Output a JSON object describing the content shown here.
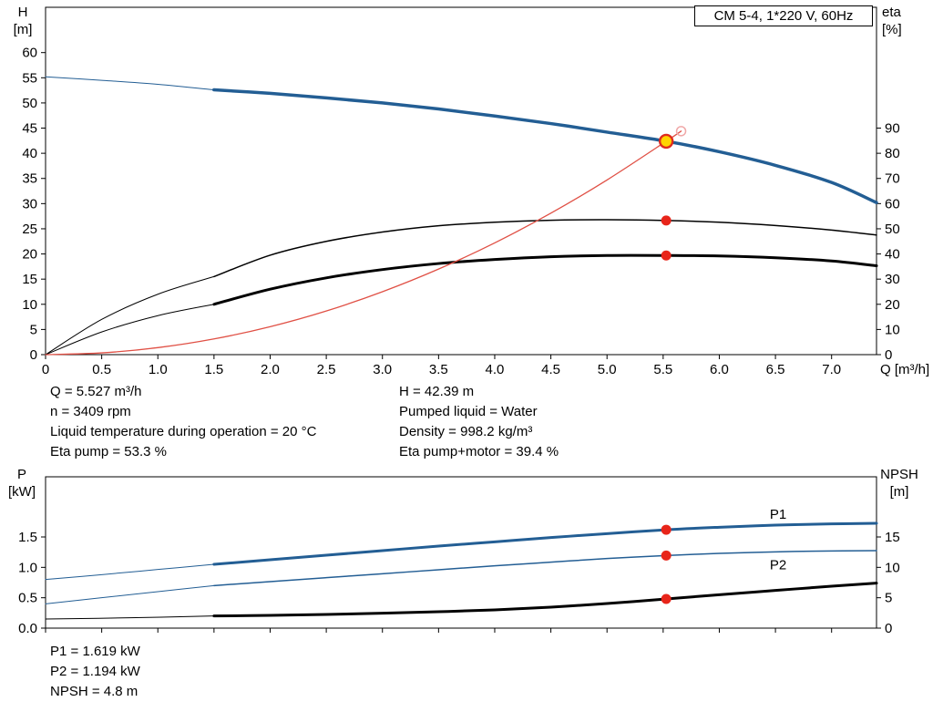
{
  "chart_data": [
    {
      "type": "line",
      "title": "CM 5-4, 1*220 V, 60Hz",
      "x_axis": {
        "title": "Q [m³/h]",
        "min": 0,
        "max": 7.4,
        "ticks": [
          [
            0,
            "0"
          ],
          [
            0.5,
            "0.5"
          ],
          [
            1,
            "1.0"
          ],
          [
            1.5,
            "1.5"
          ],
          [
            2,
            "2.0"
          ],
          [
            2.5,
            "2.5"
          ],
          [
            3,
            "3.0"
          ],
          [
            3.5,
            "3.5"
          ],
          [
            4,
            "4.0"
          ],
          [
            4.5,
            "4.5"
          ],
          [
            5,
            "5.0"
          ],
          [
            5.5,
            "5.5"
          ],
          [
            6,
            "6.0"
          ],
          [
            6.5,
            "6.5"
          ],
          [
            7,
            "7.0"
          ]
        ]
      },
      "left_axis": {
        "title_lines": [
          "H",
          "[m]"
        ],
        "min": 0,
        "max": 69,
        "ticks": [
          [
            0,
            "0"
          ],
          [
            5,
            "5"
          ],
          [
            10,
            "10"
          ],
          [
            15,
            "15"
          ],
          [
            20,
            "20"
          ],
          [
            25,
            "25"
          ],
          [
            30,
            "30"
          ],
          [
            35,
            "35"
          ],
          [
            40,
            "40"
          ],
          [
            45,
            "45"
          ],
          [
            50,
            "50"
          ],
          [
            55,
            "55"
          ],
          [
            60,
            "60"
          ]
        ]
      },
      "right_axis": {
        "title_lines": [
          "eta",
          "[%]"
        ],
        "min": 0,
        "max": 138,
        "ticks": [
          [
            0,
            "0"
          ],
          [
            10,
            "10"
          ],
          [
            20,
            "20"
          ],
          [
            30,
            "30"
          ],
          [
            40,
            "40"
          ],
          [
            50,
            "50"
          ],
          [
            60,
            "60"
          ],
          [
            70,
            "70"
          ],
          [
            80,
            "80"
          ],
          [
            90,
            "90"
          ]
        ]
      },
      "series": [
        {
          "name": "qh-curve",
          "axis": "left",
          "color": "#235e94",
          "width": 3.5,
          "points": [
            [
              1.5,
              52.6
            ],
            [
              2,
              51.9
            ],
            [
              2.5,
              51
            ],
            [
              3,
              50
            ],
            [
              3.5,
              48.8
            ],
            [
              4,
              47.4
            ],
            [
              4.5,
              45.9
            ],
            [
              5,
              44.2
            ],
            [
              5.527,
              42.39
            ],
            [
              6,
              40.3
            ],
            [
              6.5,
              37.6
            ],
            [
              7,
              34.2
            ],
            [
              7.4,
              30.2
            ]
          ]
        },
        {
          "name": "qh-curve-extension",
          "axis": "left",
          "color": "#235e94",
          "width": 1,
          "points": [
            [
              0,
              55.2
            ],
            [
              0.5,
              54.5
            ],
            [
              1,
              53.7
            ],
            [
              1.5,
              52.6
            ]
          ]
        },
        {
          "name": "eta-pump-curve",
          "axis": "right",
          "color": "#000000",
          "width": 1.5,
          "points": [
            [
              1.5,
              31
            ],
            [
              2,
              39.5
            ],
            [
              2.5,
              45
            ],
            [
              3,
              48.7
            ],
            [
              3.5,
              51.2
            ],
            [
              4,
              52.6
            ],
            [
              4.5,
              53.4
            ],
            [
              5,
              53.6
            ],
            [
              5.527,
              53.3
            ],
            [
              6,
              52.6
            ],
            [
              6.5,
              51.3
            ],
            [
              7,
              49.5
            ],
            [
              7.4,
              47.5
            ]
          ]
        },
        {
          "name": "eta-pump-extension",
          "axis": "right",
          "color": "#000000",
          "width": 1,
          "points": [
            [
              0,
              0
            ],
            [
              0.5,
              14
            ],
            [
              1,
              24
            ],
            [
              1.5,
              31
            ]
          ]
        },
        {
          "name": "eta-pump-motor-curve",
          "axis": "right",
          "color": "#000000",
          "width": 3,
          "points": [
            [
              1.5,
              20
            ],
            [
              2,
              26
            ],
            [
              2.5,
              30.5
            ],
            [
              3,
              33.8
            ],
            [
              3.5,
              36.2
            ],
            [
              4,
              37.8
            ],
            [
              4.5,
              38.9
            ],
            [
              5,
              39.4
            ],
            [
              5.527,
              39.4
            ],
            [
              6,
              39.2
            ],
            [
              6.5,
              38.5
            ],
            [
              7,
              37.2
            ],
            [
              7.4,
              35.3
            ]
          ]
        },
        {
          "name": "eta-pump-motor-extension",
          "axis": "right",
          "color": "#000000",
          "width": 1,
          "points": [
            [
              0,
              0
            ],
            [
              0.5,
              9
            ],
            [
              1,
              15.5
            ],
            [
              1.5,
              20
            ]
          ]
        },
        {
          "name": "system-curve",
          "axis": "left",
          "color": "#e05045",
          "width": 1.3,
          "points": [
            [
              0,
              0
            ],
            [
              0.5,
              0.35
            ],
            [
              1,
              1.39
            ],
            [
              1.5,
              3.12
            ],
            [
              2,
              5.55
            ],
            [
              2.5,
              8.67
            ],
            [
              3,
              12.5
            ],
            [
              3.5,
              17
            ],
            [
              4,
              22.2
            ],
            [
              4.5,
              28.1
            ],
            [
              5,
              34.7
            ],
            [
              5.527,
              42.39
            ],
            [
              5.66,
              44.4
            ]
          ]
        }
      ],
      "markers": [
        {
          "name": "rated-point-marker",
          "axis": "left",
          "x": 5.66,
          "value": 44.4,
          "r": 5,
          "fill": "none",
          "stroke": "#f0a8a8",
          "stroke_width": 1.5,
          "interactable": false
        },
        {
          "name": "operating-point-marker",
          "axis": "left",
          "x": 5.527,
          "value": 42.39,
          "r": 7,
          "fill": "#ffd400",
          "stroke": "#df2b1e",
          "stroke_width": 2.4,
          "interactable": true
        },
        {
          "name": "eta-pump-point",
          "axis": "right",
          "x": 5.527,
          "value": 53.3,
          "r": 5.5,
          "fill": "#e8251a",
          "stroke": "none",
          "stroke_width": 0,
          "interactable": false
        },
        {
          "name": "eta-pump-motor-point",
          "axis": "right",
          "x": 5.527,
          "value": 39.4,
          "r": 5.5,
          "fill": "#e8251a",
          "stroke": "none",
          "stroke_width": 0,
          "interactable": false
        }
      ],
      "annotations": []
    },
    {
      "type": "line",
      "title": "",
      "x_axis": {
        "title": "",
        "min": 0,
        "max": 7.4,
        "ticks": [
          [
            0,
            ""
          ],
          [
            0.5,
            ""
          ],
          [
            1,
            ""
          ],
          [
            1.5,
            ""
          ],
          [
            2,
            ""
          ],
          [
            2.5,
            ""
          ],
          [
            3,
            ""
          ],
          [
            3.5,
            ""
          ],
          [
            4,
            ""
          ],
          [
            4.5,
            ""
          ],
          [
            5,
            ""
          ],
          [
            5.5,
            ""
          ],
          [
            6,
            ""
          ],
          [
            6.5,
            ""
          ],
          [
            7,
            ""
          ]
        ]
      },
      "left_axis": {
        "title_lines": [
          "P",
          "[kW]"
        ],
        "min": 0,
        "max": 2.49,
        "ticks": [
          [
            0,
            "0.0"
          ],
          [
            0.5,
            "0.5"
          ],
          [
            1,
            "1.0"
          ],
          [
            1.5,
            "1.5"
          ]
        ]
      },
      "right_axis": {
        "title_lines": [
          "NPSH",
          "[m]"
        ],
        "min": 0,
        "max": 24.9,
        "ticks": [
          [
            0,
            "0"
          ],
          [
            5,
            "5"
          ],
          [
            10,
            "10"
          ],
          [
            15,
            "15"
          ]
        ]
      },
      "series": [
        {
          "name": "p1-curve",
          "axis": "left",
          "color": "#235e94",
          "width": 3,
          "points": [
            [
              1.5,
              1.05
            ],
            [
              2,
              1.125
            ],
            [
              2.5,
              1.2
            ],
            [
              3,
              1.275
            ],
            [
              3.5,
              1.35
            ],
            [
              4,
              1.42
            ],
            [
              4.5,
              1.49
            ],
            [
              5,
              1.555
            ],
            [
              5.527,
              1.619
            ],
            [
              6,
              1.66
            ],
            [
              6.5,
              1.695
            ],
            [
              7,
              1.715
            ],
            [
              7.4,
              1.725
            ]
          ]
        },
        {
          "name": "p1-extension",
          "axis": "left",
          "color": "#235e94",
          "width": 1,
          "points": [
            [
              0,
              0.8
            ],
            [
              0.5,
              0.88
            ],
            [
              1,
              0.965
            ],
            [
              1.5,
              1.05
            ]
          ]
        },
        {
          "name": "p2-curve",
          "axis": "left",
          "color": "#235e94",
          "width": 1.5,
          "points": [
            [
              1.5,
              0.7
            ],
            [
              2,
              0.765
            ],
            [
              2.5,
              0.83
            ],
            [
              3,
              0.895
            ],
            [
              3.5,
              0.96
            ],
            [
              4,
              1.025
            ],
            [
              4.5,
              1.085
            ],
            [
              5,
              1.145
            ],
            [
              5.527,
              1.194
            ],
            [
              6,
              1.23
            ],
            [
              6.5,
              1.255
            ],
            [
              7,
              1.27
            ],
            [
              7.4,
              1.275
            ]
          ]
        },
        {
          "name": "p2-extension",
          "axis": "left",
          "color": "#235e94",
          "width": 1,
          "points": [
            [
              0,
              0.4
            ],
            [
              0.5,
              0.5
            ],
            [
              1,
              0.6
            ],
            [
              1.5,
              0.7
            ]
          ]
        },
        {
          "name": "npsh-curve",
          "axis": "right",
          "color": "#000000",
          "width": 3,
          "points": [
            [
              1.5,
              2
            ],
            [
              2,
              2.1
            ],
            [
              2.5,
              2.25
            ],
            [
              3,
              2.45
            ],
            [
              3.5,
              2.7
            ],
            [
              4,
              3
            ],
            [
              4.5,
              3.45
            ],
            [
              5,
              4.05
            ],
            [
              5.527,
              4.8
            ],
            [
              6,
              5.5
            ],
            [
              6.5,
              6.2
            ],
            [
              7,
              6.9
            ],
            [
              7.4,
              7.4
            ]
          ]
        },
        {
          "name": "npsh-extension",
          "axis": "right",
          "color": "#000000",
          "width": 1,
          "points": [
            [
              0,
              1.5
            ],
            [
              0.75,
              1.7
            ],
            [
              1.5,
              2
            ]
          ]
        }
      ],
      "markers": [
        {
          "name": "p1-point",
          "axis": "left",
          "x": 5.527,
          "value": 1.619,
          "r": 5.5,
          "fill": "#e8251a",
          "stroke": "none",
          "stroke_width": 0,
          "interactable": false
        },
        {
          "name": "p2-point",
          "axis": "left",
          "x": 5.527,
          "value": 1.194,
          "r": 5.5,
          "fill": "#e8251a",
          "stroke": "none",
          "stroke_width": 0,
          "interactable": false
        },
        {
          "name": "npsh-point",
          "axis": "right",
          "x": 5.527,
          "value": 4.8,
          "r": 5.5,
          "fill": "#e8251a",
          "stroke": "none",
          "stroke_width": 0,
          "interactable": false
        }
      ],
      "annotations": [
        {
          "name": "p1-label",
          "text": "P1",
          "axis": "left",
          "x": 6.45,
          "value": 1.8,
          "color": "#235e94"
        },
        {
          "name": "p2-label",
          "text": "P2",
          "axis": "left",
          "x": 6.45,
          "value": 0.97,
          "color": "#235e94"
        }
      ]
    }
  ],
  "info_top": {
    "left": [
      "Q = 5.527 m³/h",
      "n = 3409 rpm",
      "Liquid temperature during operation = 20 °C",
      "Eta pump = 53.3 %"
    ],
    "right": [
      "H = 42.39 m",
      "Pumped liquid = Water",
      "Density = 998.2 kg/m³",
      "Eta pump+motor = 39.4 %"
    ]
  },
  "info_bottom": [
    "P1 = 1.619 kW",
    "P2 = 1.194 kW",
    "NPSH = 4.8 m"
  ]
}
